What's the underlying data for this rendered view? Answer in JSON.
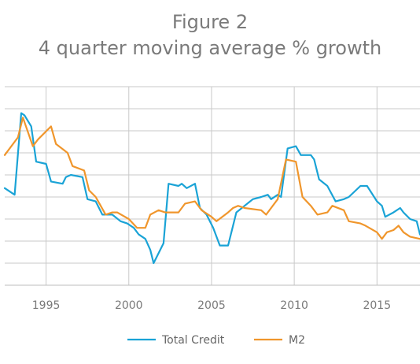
{
  "chart_data": {
    "type": "line",
    "title": "Figure 2",
    "subtitle": "4 quarter moving average % growth",
    "xlabel": "",
    "ylabel": "",
    "x_ticks": [
      "1995",
      "2000",
      "2005",
      "2010",
      "2015"
    ],
    "xlim": [
      1992.5,
      2017.6
    ],
    "ylim": [
      0,
      9
    ],
    "grid": "horizontal",
    "legend_position": "bottom",
    "series": [
      {
        "name": "Total Credit",
        "color": "#1aa3d6",
        "x": [
          1992.5,
          1993.1,
          1993.5,
          1993.7,
          1994.1,
          1994.4,
          1995.0,
          1995.3,
          1996.0,
          1996.2,
          1996.5,
          1997.2,
          1997.5,
          1998.0,
          1998.4,
          1999.0,
          1999.5,
          1999.9,
          2000.3,
          2000.6,
          2001.0,
          2001.3,
          2001.5,
          2002.1,
          2002.4,
          2003.0,
          2003.2,
          2003.5,
          2004.0,
          2004.3,
          2004.7,
          2005.1,
          2005.5,
          2006.0,
          2006.5,
          2007.0,
          2007.5,
          2008.0,
          2008.4,
          2008.6,
          2009.0,
          2009.2,
          2009.6,
          2010.1,
          2010.4,
          2011.0,
          2011.2,
          2011.5,
          2012.0,
          2012.5,
          2013.0,
          2013.3,
          2014.0,
          2014.4,
          2015.0,
          2015.3,
          2015.5,
          2016.0,
          2016.4,
          2016.6,
          2017.0,
          2017.4,
          2017.6
        ],
        "values": [
          4.4,
          4.1,
          7.8,
          7.7,
          7.2,
          5.6,
          5.5,
          4.7,
          4.6,
          4.9,
          5.0,
          4.9,
          3.9,
          3.8,
          3.2,
          3.2,
          2.9,
          2.8,
          2.6,
          2.3,
          2.1,
          1.6,
          1.0,
          1.9,
          4.6,
          4.5,
          4.6,
          4.4,
          4.6,
          3.5,
          3.2,
          2.6,
          1.8,
          1.8,
          3.3,
          3.6,
          3.9,
          4.0,
          4.1,
          3.9,
          4.1,
          4.0,
          6.2,
          6.3,
          5.9,
          5.9,
          5.7,
          4.8,
          4.5,
          3.8,
          3.9,
          4.0,
          4.5,
          4.5,
          3.8,
          3.6,
          3.1,
          3.3,
          3.5,
          3.3,
          3.0,
          2.9,
          2.3
        ]
      },
      {
        "name": "M2",
        "color": "#f0962c",
        "x": [
          1992.5,
          1993.3,
          1993.6,
          1994.2,
          1994.5,
          1995.3,
          1995.6,
          1996.3,
          1996.6,
          1997.3,
          1997.6,
          1998.0,
          1998.6,
          1999.0,
          1999.3,
          2000.0,
          2000.5,
          2001.0,
          2001.3,
          2001.8,
          2002.2,
          2003.0,
          2003.4,
          2004.0,
          2004.4,
          2005.0,
          2005.3,
          2006.0,
          2006.3,
          2006.6,
          2007.0,
          2008.0,
          2008.3,
          2009.0,
          2009.5,
          2010.1,
          2010.5,
          2011.0,
          2011.4,
          2012.0,
          2012.3,
          2013.0,
          2013.3,
          2014.0,
          2014.3,
          2015.0,
          2015.3,
          2015.6,
          2016.0,
          2016.3,
          2016.6,
          2017.0,
          2017.6
        ],
        "values": [
          5.9,
          6.7,
          7.6,
          6.3,
          6.6,
          7.2,
          6.4,
          6.0,
          5.4,
          5.2,
          4.3,
          4.0,
          3.2,
          3.3,
          3.3,
          3.0,
          2.6,
          2.6,
          3.2,
          3.4,
          3.3,
          3.3,
          3.7,
          3.8,
          3.4,
          3.1,
          2.9,
          3.3,
          3.5,
          3.6,
          3.5,
          3.4,
          3.2,
          3.9,
          5.7,
          5.6,
          4.0,
          3.6,
          3.2,
          3.3,
          3.6,
          3.4,
          2.9,
          2.8,
          2.7,
          2.4,
          2.1,
          2.4,
          2.5,
          2.7,
          2.4,
          2.2,
          2.1
        ]
      }
    ]
  }
}
